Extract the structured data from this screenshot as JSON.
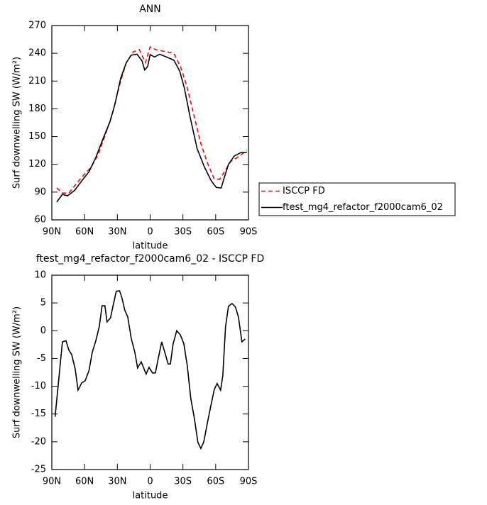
{
  "chart_data": [
    {
      "type": "line",
      "title": "ANN",
      "xlabel": "latitude",
      "ylabel": "Surf downwelling SW (W/m²)",
      "xlim": [
        90,
        -90
      ],
      "xticks": [
        {
          "value": 90,
          "label": "90N"
        },
        {
          "value": 60,
          "label": "60N"
        },
        {
          "value": 30,
          "label": "30N"
        },
        0,
        {
          "value": -30,
          "label": "30S"
        },
        {
          "value": -60,
          "label": "60S"
        },
        {
          "value": -90,
          "label": "90S"
        }
      ],
      "ylim": [
        60,
        270
      ],
      "yticks": [
        60,
        90,
        120,
        150,
        180,
        210,
        240,
        270
      ],
      "legend": "right",
      "series": [
        {
          "name": "ISCCP FD",
          "color": "#ff0000",
          "dashed": true,
          "x": [
            85.5,
            80.3,
            74.4,
            69,
            62.7,
            54,
            47.6,
            41,
            34.5,
            28,
            21.8,
            15.3,
            10,
            4.3,
            0,
            -5,
            -15,
            -21.7,
            -28,
            -33.2,
            -39.7,
            -46,
            -52.6,
            -58.5,
            -63.6,
            -69,
            -73.6,
            -80,
            -88.6
          ],
          "values": [
            94.5,
            89,
            89,
            97,
            106,
            117,
            130.5,
            152,
            175,
            205.6,
            230,
            241.6,
            244,
            230,
            247,
            244,
            241.6,
            240,
            225,
            206,
            175,
            144,
            121,
            104.5,
            103.7,
            113.7,
            123,
            127.5,
            135
          ]
        },
        {
          "name": "ftest_mg4_refactor_f2000cam6_02",
          "color": "#000000",
          "dashed": false,
          "x": [
            85.5,
            80.3,
            75.7,
            69,
            62.7,
            56,
            49.7,
            43,
            36.8,
            32,
            27,
            21.8,
            17.3,
            12,
            7.5,
            5,
            2.3,
            0,
            -4,
            -8.7,
            -15,
            -21.7,
            -27,
            -31.4,
            -36.6,
            -43,
            -49.5,
            -56,
            -60.6,
            -65,
            -69,
            -71.7,
            -77,
            -83.5,
            -88.6
          ],
          "values": [
            79.2,
            87.6,
            86,
            92,
            102,
            112,
            127.5,
            148,
            166,
            186,
            213,
            230,
            238,
            239,
            232,
            222,
            225.6,
            238.6,
            236,
            239,
            236,
            232.5,
            221,
            202,
            171,
            137,
            117.6,
            102,
            95,
            94.5,
            110,
            120,
            129,
            133,
            133
          ]
        }
      ]
    },
    {
      "type": "line",
      "title": "ftest_mg4_refactor_f2000cam6_02 - ISCCP FD",
      "xlabel": "latitude",
      "ylabel": "Surf downwelling SW (W/m²)",
      "xlim": [
        90,
        -90
      ],
      "xticks": [
        {
          "value": 90,
          "label": "90N"
        },
        {
          "value": 60,
          "label": "60N"
        },
        {
          "value": 30,
          "label": "30N"
        },
        0,
        {
          "value": -30,
          "label": "30S"
        },
        {
          "value": -60,
          "label": "60S"
        },
        {
          "value": -90,
          "label": "90S"
        }
      ],
      "ylim": [
        -25,
        10
      ],
      "yticks": [
        -25,
        -20,
        -15,
        -10,
        -5,
        0,
        5,
        10
      ],
      "series": [
        {
          "color": "#000000",
          "dashed": false,
          "x": [
            87,
            80.3,
            77,
            74.4,
            71.8,
            68.6,
            66,
            62.7,
            59.5,
            56,
            53,
            49.7,
            46.5,
            44,
            41.4,
            39.5,
            36.3,
            33.5,
            31,
            28,
            25.8,
            23.2,
            20.5,
            17.3,
            14,
            11.5,
            8.2,
            3.7,
            1,
            -2.2,
            -4.8,
            -7.4,
            -10.6,
            -14,
            -16.5,
            -18.5,
            -21,
            -24.3,
            -27.5,
            -30.8,
            -34,
            -37.2,
            -40.5,
            -43.7,
            -46.4,
            -49,
            -53,
            -56,
            -58.7,
            -61.3,
            -64.5,
            -66.5,
            -69,
            -71.7,
            -75,
            -78,
            -80.8,
            -84,
            -87
          ],
          "values": [
            -15.5,
            -2,
            -1.8,
            -3.5,
            -4.3,
            -6.9,
            -10.7,
            -9.4,
            -9,
            -7.2,
            -3.9,
            -1.8,
            0.8,
            4.5,
            4.5,
            1.6,
            2.3,
            4.9,
            7.1,
            7.2,
            5.9,
            3.7,
            2.5,
            -1.4,
            -3.9,
            -6.7,
            -5.6,
            -7.8,
            -6.6,
            -7.6,
            -7.6,
            -5,
            -2,
            -4.3,
            -6,
            -6,
            -2.4,
            0,
            -0.7,
            -2.3,
            -6.3,
            -12.2,
            -15.8,
            -20.1,
            -21.2,
            -20.1,
            -16,
            -13.1,
            -10.6,
            -9.5,
            -10.7,
            -8.1,
            0.7,
            4.4,
            4.9,
            4.3,
            2.5,
            -2,
            -1.5
          ]
        }
      ]
    }
  ]
}
